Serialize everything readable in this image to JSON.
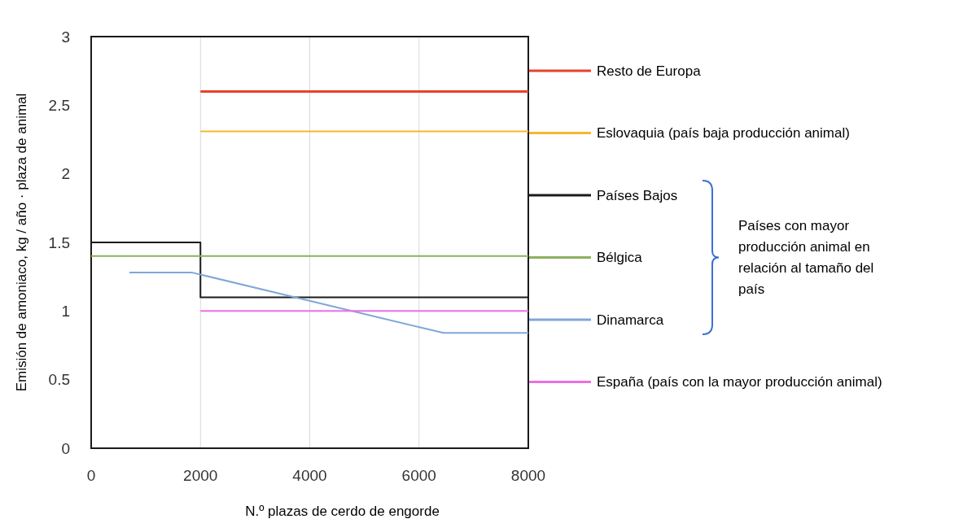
{
  "chart_data": {
    "type": "line",
    "xlabel": "N.º plazas de cerdo de engorde",
    "ylabel": "Emisión de amoniaco,  kg / año · plaza de animal",
    "xlim": [
      0,
      8000
    ],
    "xticks": [
      0,
      2000,
      4000,
      6000,
      8000
    ],
    "ylim": [
      0,
      3
    ],
    "yticks": [
      0,
      0.5,
      1,
      1.5,
      2,
      2.5,
      3
    ],
    "grid": "x",
    "legend": "right",
    "line_style": "solid",
    "marker": "none",
    "series": [
      {
        "name": "Resto de Europa",
        "color": "#e8412c",
        "x": [
          2000,
          8000
        ],
        "values": [
          2.6,
          2.6
        ]
      },
      {
        "name": "Eslovaquia (país baja producción animal)",
        "color": "#f5b731",
        "x": [
          2000,
          8000
        ],
        "values": [
          2.31,
          2.31
        ]
      },
      {
        "name": "Países Bajos",
        "color": "#1a1a1a",
        "type": "step",
        "x": [
          0,
          2000,
          8000
        ],
        "values": [
          1.5,
          1.1,
          1.1
        ]
      },
      {
        "name": "Bélgica",
        "color": "#8db160",
        "x": [
          0,
          8000
        ],
        "values": [
          1.4,
          1.4
        ]
      },
      {
        "name": "Dinamarca",
        "color": "#7fa7d9",
        "x": [
          700,
          1850,
          6450,
          8000
        ],
        "values": [
          1.28,
          1.28,
          0.84,
          0.84
        ]
      },
      {
        "name": "España (país con la mayor producción animal)",
        "color": "#ea6fe6",
        "x": [
          2000,
          8000
        ],
        "values": [
          1,
          1
        ]
      }
    ],
    "annotations": [
      "Países con mayor producción animal en relación al tamaño del país"
    ]
  }
}
